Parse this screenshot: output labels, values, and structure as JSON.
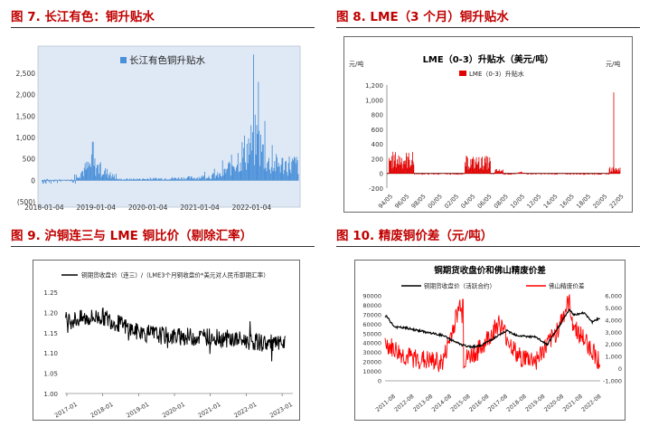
{
  "figures": [
    {
      "title": "图 7.  长江有色：铜升贴水"
    },
    {
      "title": "图 8.  LME（3 个月）铜升贴水"
    },
    {
      "title": "图 9.  沪铜连三与 LME 铜比价（剔除汇率）"
    },
    {
      "title": "图 10.  精废铜价差（元/吨）"
    }
  ],
  "chart_data": [
    {
      "type": "bar",
      "title": "",
      "legend": [
        "长江有色铜升贴水"
      ],
      "legend_position": "top-center",
      "colors": {
        "bar": "#4a90d9",
        "plot_bg": "#dfe9f5"
      },
      "x_ticks": [
        "2018-01-04",
        "2019-01-04",
        "2020-01-04",
        "2021-01-04",
        "2022-01-04"
      ],
      "y_ticks": [
        "(500)",
        "0",
        "500",
        "1,000",
        "1,500",
        "2,000",
        "2,500"
      ],
      "ylim": [
        -500,
        2500
      ],
      "grid": false,
      "key_points": [
        {
          "x": "2018-01",
          "y": 50
        },
        {
          "x": "2018-07",
          "y": 30
        },
        {
          "x": "2018-12",
          "y": 900
        },
        {
          "x": "2019-06",
          "y": 60
        },
        {
          "x": "2020-01",
          "y": 80
        },
        {
          "x": "2020-12",
          "y": 150
        },
        {
          "x": "2021-06",
          "y": 300
        },
        {
          "x": "2022-02",
          "y": 2300
        },
        {
          "x": "2022-05",
          "y": 900
        }
      ]
    },
    {
      "type": "area",
      "title": "LME（0-3）升贴水（美元/吨）",
      "legend": [
        "LME（0-3）升贴水"
      ],
      "legend_position": "top-center",
      "colors": {
        "series": "#e00000"
      },
      "y_unit_left": "元/吨",
      "y_unit_right": "元/吨",
      "x_ticks": [
        "94/05",
        "96/05",
        "98/05",
        "00/05",
        "02/05",
        "04/05",
        "06/05",
        "08/05",
        "10/05",
        "12/05",
        "14/05",
        "16/05",
        "18/05",
        "20/05",
        "22/05"
      ],
      "y_ticks": [
        "-200",
        "0",
        "200",
        "400",
        "600",
        "800",
        "1,000",
        "1,200"
      ],
      "ylim": [
        -200,
        1200
      ],
      "grid": false,
      "key_points": [
        {
          "x": "1995",
          "y": 300
        },
        {
          "x": "1997",
          "y": 50
        },
        {
          "x": "2005",
          "y": 200
        },
        {
          "x": "2006",
          "y": 250
        },
        {
          "x": "2008",
          "y": 60
        },
        {
          "x": "2021-10",
          "y": 1100
        }
      ]
    },
    {
      "type": "line",
      "title": "",
      "legend": [
        "铜期货收盘价（连三）/（LME3个月铜收盘价*美元对人民币即期汇率）"
      ],
      "legend_position": "top-center",
      "colors": {
        "series": "#000000"
      },
      "x_ticks": [
        "2017-01",
        "2018-01",
        "2019-01",
        "2020-01",
        "2021-01",
        "2022-01",
        "2023-01"
      ],
      "y_ticks": [
        "1.00",
        "1.05",
        "1.10",
        "1.15",
        "1.20",
        "1.25"
      ],
      "ylim": [
        1.0,
        1.25
      ],
      "grid": false,
      "key_points": [
        {
          "x": "2017-01",
          "y": 1.18
        },
        {
          "x": "2018-01",
          "y": 1.19
        },
        {
          "x": "2018-07",
          "y": 1.17
        },
        {
          "x": "2019-01",
          "y": 1.15
        },
        {
          "x": "2020-01",
          "y": 1.14
        },
        {
          "x": "2021-01",
          "y": 1.14
        },
        {
          "x": "2022-01",
          "y": 1.13
        },
        {
          "x": "2023-01",
          "y": 1.12
        }
      ]
    },
    {
      "type": "line",
      "title": "铜期货收盘价和佛山精废价差",
      "legend": [
        "铜期货收盘价（活跃合约）",
        "佛山精废价差"
      ],
      "legend_position": "top-center",
      "colors": {
        "series1": "#000000",
        "series2": "#ff0000"
      },
      "x_ticks": [
        "2011-08",
        "2012-08",
        "2013-08",
        "2014-08",
        "2015-08",
        "2016-08",
        "2017-08",
        "2018-08",
        "2019-08",
        "2020-08",
        "2021-08",
        "2022-08"
      ],
      "y_ticks_left": [
        "0",
        "10000",
        "20000",
        "30000",
        "40000",
        "50000",
        "60000",
        "70000",
        "80000",
        "90000"
      ],
      "y_ticks_right": [
        "-1,000",
        "0",
        "1,000",
        "2,000",
        "3,000",
        "4,000",
        "5,000",
        "6,000"
      ],
      "ylim_left": [
        0,
        90000
      ],
      "ylim_right": [
        -1000,
        6000
      ],
      "grid": false,
      "series": [
        {
          "name": "铜期货收盘价（活跃合约）",
          "axis": "left",
          "key_points": [
            {
              "x": "2011-08",
              "y": 68000
            },
            {
              "x": "2012-01",
              "y": 57000
            },
            {
              "x": "2012-08",
              "y": 56000
            },
            {
              "x": "2013-08",
              "y": 52000
            },
            {
              "x": "2014-08",
              "y": 48000
            },
            {
              "x": "2015-08",
              "y": 38000
            },
            {
              "x": "2016-01",
              "y": 36000
            },
            {
              "x": "2016-08",
              "y": 37000
            },
            {
              "x": "2017-08",
              "y": 48000
            },
            {
              "x": "2018-01",
              "y": 53000
            },
            {
              "x": "2018-08",
              "y": 48000
            },
            {
              "x": "2019-08",
              "y": 46000
            },
            {
              "x": "2020-03",
              "y": 38000
            },
            {
              "x": "2020-08",
              "y": 51000
            },
            {
              "x": "2021-05",
              "y": 75000
            },
            {
              "x": "2021-08",
              "y": 70000
            },
            {
              "x": "2022-03",
              "y": 72000
            },
            {
              "x": "2022-08",
              "y": 62000
            },
            {
              "x": "2022-12",
              "y": 66000
            }
          ]
        },
        {
          "name": "佛山精废价差",
          "axis": "right",
          "key_points": [
            {
              "x": "2011-08",
              "y": 2000
            },
            {
              "x": "2012-08",
              "y": 1000
            },
            {
              "x": "2013-08",
              "y": 700
            },
            {
              "x": "2014-08",
              "y": 500
            },
            {
              "x": "2015-08",
              "y": 5700
            },
            {
              "x": "2015-09",
              "y": 600
            },
            {
              "x": "2016-08",
              "y": 1600
            },
            {
              "x": "2017-08",
              "y": 3800
            },
            {
              "x": "2018-08",
              "y": 1000
            },
            {
              "x": "2019-08",
              "y": 700
            },
            {
              "x": "2020-08",
              "y": 2800
            },
            {
              "x": "2021-05",
              "y": 5500
            },
            {
              "x": "2021-08",
              "y": 3500
            },
            {
              "x": "2022-08",
              "y": 1500
            },
            {
              "x": "2022-12",
              "y": 700
            }
          ]
        }
      ]
    }
  ]
}
